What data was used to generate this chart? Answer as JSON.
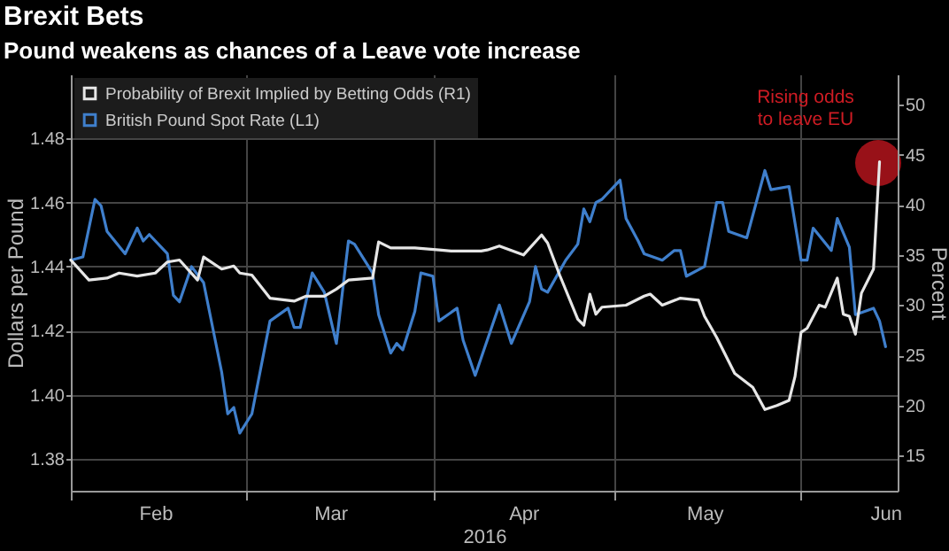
{
  "chart_data": {
    "type": "line",
    "title": "Brexit Bets",
    "subtitle": "Pound weakens as chances of a Leave vote increase",
    "xlabel": "2016",
    "ylabel": "Dollars per Pound",
    "y2label": "Percent",
    "xlim": [
      "2016-02-01",
      "2016-06-17"
    ],
    "xticks": [
      {
        "value": "2016-02-01",
        "label": null
      },
      {
        "value": "2016-02-15",
        "label": "Feb"
      },
      {
        "value": "2016-03-01",
        "label": null
      },
      {
        "value": "2016-03-15",
        "label": "Mar"
      },
      {
        "value": "2016-04-01",
        "label": null
      },
      {
        "value": "2016-04-16",
        "label": "Apr"
      },
      {
        "value": "2016-05-01",
        "label": null
      },
      {
        "value": "2016-05-16",
        "label": "May"
      },
      {
        "value": "2016-06-01",
        "label": null
      },
      {
        "value": "2016-06-15",
        "label": "Jun"
      }
    ],
    "ylim": [
      1.37,
      1.5
    ],
    "yticks": [
      1.38,
      {
        "value": 1.4,
        "label": "1.40"
      },
      1.42,
      1.44,
      1.46,
      1.48
    ],
    "y2lim": [
      11.5,
      53
    ],
    "y2ticks": [
      15,
      20,
      25,
      30,
      35,
      40,
      45,
      50
    ],
    "grid": true,
    "legend": "top left",
    "series": [
      {
        "name": "Probability of Brexit Implied by Betting Odds (R1)",
        "color": "#e6e6e6",
        "axis": "y2",
        "x": [
          "2016-02-01",
          "2016-02-04",
          "2016-02-07",
          "2016-02-09",
          "2016-02-12",
          "2016-02-15",
          "2016-02-17",
          "2016-02-19",
          "2016-02-22",
          "2016-02-23",
          "2016-02-26",
          "2016-02-28",
          "2016-02-29",
          "2016-03-02",
          "2016-03-05",
          "2016-03-09",
          "2016-03-11",
          "2016-03-14",
          "2016-03-16",
          "2016-03-18",
          "2016-03-22",
          "2016-03-23",
          "2016-03-25",
          "2016-03-29",
          "2016-04-02",
          "2016-04-04",
          "2016-04-09",
          "2016-04-10",
          "2016-04-12",
          "2016-04-16",
          "2016-04-19",
          "2016-04-20",
          "2016-04-22",
          "2016-04-25",
          "2016-04-26",
          "2016-04-27",
          "2016-04-28",
          "2016-04-29",
          "2016-05-03",
          "2016-05-06",
          "2016-05-07",
          "2016-05-09",
          "2016-05-12",
          "2016-05-15",
          "2016-05-16",
          "2016-05-18",
          "2016-05-21",
          "2016-05-24",
          "2016-05-26",
          "2016-05-28",
          "2016-05-30",
          "2016-05-31",
          "2016-06-01",
          "2016-06-02",
          "2016-06-04",
          "2016-06-05",
          "2016-06-07",
          "2016-06-08",
          "2016-06-09",
          "2016-06-10",
          "2016-06-11",
          "2016-06-13",
          "2016-06-14"
        ],
        "values": [
          34.5,
          32.5,
          32.7,
          33.2,
          32.9,
          33.2,
          34.3,
          34.5,
          32.5,
          34.8,
          33.6,
          33.9,
          33.2,
          33.0,
          30.7,
          30.4,
          30.9,
          30.9,
          31.6,
          32.5,
          32.7,
          36.3,
          35.7,
          35.7,
          35.5,
          35.4,
          35.4,
          35.5,
          35.9,
          35.0,
          37.0,
          36.2,
          33.0,
          28.6,
          28.0,
          31.1,
          29.1,
          29.8,
          30.0,
          30.9,
          31.1,
          30.0,
          30.7,
          30.5,
          28.9,
          26.8,
          23.2,
          21.8,
          19.6,
          20.0,
          20.5,
          22.9,
          27.3,
          27.7,
          30.0,
          29.8,
          32.7,
          29.1,
          28.9,
          27.1,
          31.2,
          33.6,
          44.3
        ]
      },
      {
        "name": "British Pound Spot Rate (L1)",
        "color": "#3f7fcc",
        "axis": "y",
        "x": [
          "2016-02-01",
          "2016-02-03",
          "2016-02-05",
          "2016-02-06",
          "2016-02-07",
          "2016-02-10",
          "2016-02-12",
          "2016-02-13",
          "2016-02-14",
          "2016-02-17",
          "2016-02-18",
          "2016-02-19",
          "2016-02-21",
          "2016-02-23",
          "2016-02-26",
          "2016-02-27",
          "2016-02-28",
          "2016-02-29",
          "2016-03-02",
          "2016-03-05",
          "2016-03-08",
          "2016-03-09",
          "2016-03-10",
          "2016-03-12",
          "2016-03-14",
          "2016-03-16",
          "2016-03-18",
          "2016-03-19",
          "2016-03-22",
          "2016-03-23",
          "2016-03-25",
          "2016-03-26",
          "2016-03-27",
          "2016-03-29",
          "2016-03-30",
          "2016-04-01",
          "2016-04-02",
          "2016-04-05",
          "2016-04-06",
          "2016-04-08",
          "2016-04-12",
          "2016-04-14",
          "2016-04-17",
          "2016-04-18",
          "2016-04-19",
          "2016-04-20",
          "2016-04-23",
          "2016-04-25",
          "2016-04-26",
          "2016-04-27",
          "2016-04-28",
          "2016-04-29",
          "2016-05-02",
          "2016-05-03",
          "2016-05-05",
          "2016-05-06",
          "2016-05-09",
          "2016-05-11",
          "2016-05-12",
          "2016-05-13",
          "2016-05-16",
          "2016-05-18",
          "2016-05-19",
          "2016-05-20",
          "2016-05-23",
          "2016-05-26",
          "2016-05-27",
          "2016-05-30",
          "2016-06-01",
          "2016-06-02",
          "2016-06-03",
          "2016-06-06",
          "2016-06-07",
          "2016-06-09",
          "2016-06-10",
          "2016-06-13",
          "2016-06-14",
          "2016-06-15"
        ],
        "values": [
          1.442,
          1.443,
          1.461,
          1.459,
          1.451,
          1.444,
          1.452,
          1.448,
          1.45,
          1.444,
          1.431,
          1.429,
          1.44,
          1.435,
          1.407,
          1.394,
          1.396,
          1.388,
          1.394,
          1.423,
          1.427,
          1.421,
          1.421,
          1.438,
          1.432,
          1.416,
          1.448,
          1.447,
          1.438,
          1.425,
          1.413,
          1.416,
          1.414,
          1.426,
          1.438,
          1.437,
          1.423,
          1.427,
          1.417,
          1.406,
          1.428,
          1.416,
          1.429,
          1.44,
          1.433,
          1.432,
          1.442,
          1.447,
          1.458,
          1.454,
          1.46,
          1.461,
          1.467,
          1.455,
          1.448,
          1.444,
          1.442,
          1.445,
          1.445,
          1.437,
          1.44,
          1.46,
          1.46,
          1.451,
          1.449,
          1.47,
          1.464,
          1.465,
          1.442,
          1.442,
          1.452,
          1.445,
          1.455,
          1.446,
          1.425,
          1.427,
          1.423,
          1.415
        ]
      }
    ],
    "annotations": [
      "Rising odds\nto leave EU"
    ]
  }
}
